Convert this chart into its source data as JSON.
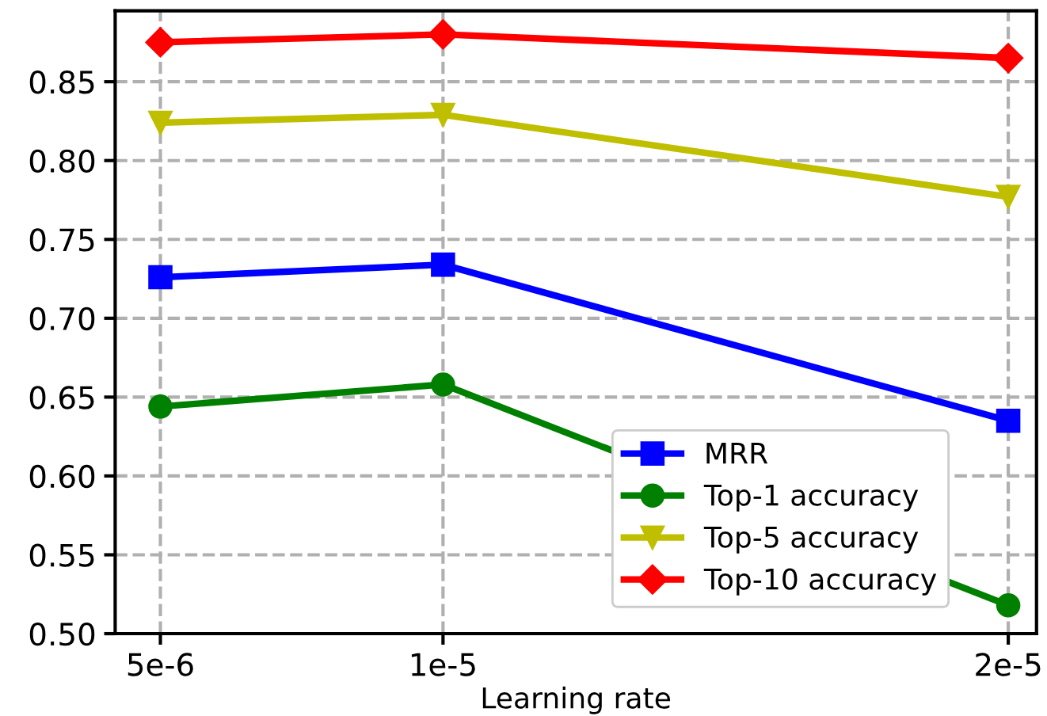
{
  "chart_data": {
    "type": "line",
    "xlabel": "Learning rate",
    "x": [
      5e-06,
      1e-05,
      2e-05
    ],
    "xlim": [
      4.2e-06,
      2.05e-05
    ],
    "xticks": [
      {
        "value": 5e-06,
        "label": "5e-6"
      },
      {
        "value": 1e-05,
        "label": "1e-5"
      },
      {
        "value": 2e-05,
        "label": "2e-5"
      }
    ],
    "ylim": [
      0.5,
      0.895
    ],
    "yticks": [
      {
        "value": 0.5,
        "label": "0.50"
      },
      {
        "value": 0.55,
        "label": "0.55"
      },
      {
        "value": 0.6,
        "label": "0.60"
      },
      {
        "value": 0.65,
        "label": "0.65"
      },
      {
        "value": 0.7,
        "label": "0.70"
      },
      {
        "value": 0.75,
        "label": "0.75"
      },
      {
        "value": 0.8,
        "label": "0.80"
      },
      {
        "value": 0.85,
        "label": "0.85"
      }
    ],
    "grid": true,
    "line_style": "solid",
    "legend": "bottom right",
    "series": [
      {
        "name": "MRR",
        "color": "#0000ff",
        "marker": "square",
        "values": [
          0.726,
          0.734,
          0.635
        ]
      },
      {
        "name": "Top-1 accuracy",
        "color": "#008000",
        "marker": "circle",
        "values": [
          0.644,
          0.658,
          0.518
        ]
      },
      {
        "name": "Top-5 accuracy",
        "color": "#bfbf00",
        "marker": "triangle",
        "values": [
          0.824,
          0.829,
          0.777
        ]
      },
      {
        "name": "Top-10 accuracy",
        "color": "#ff0000",
        "marker": "diamond",
        "values": [
          0.875,
          0.88,
          0.865
        ]
      }
    ]
  }
}
